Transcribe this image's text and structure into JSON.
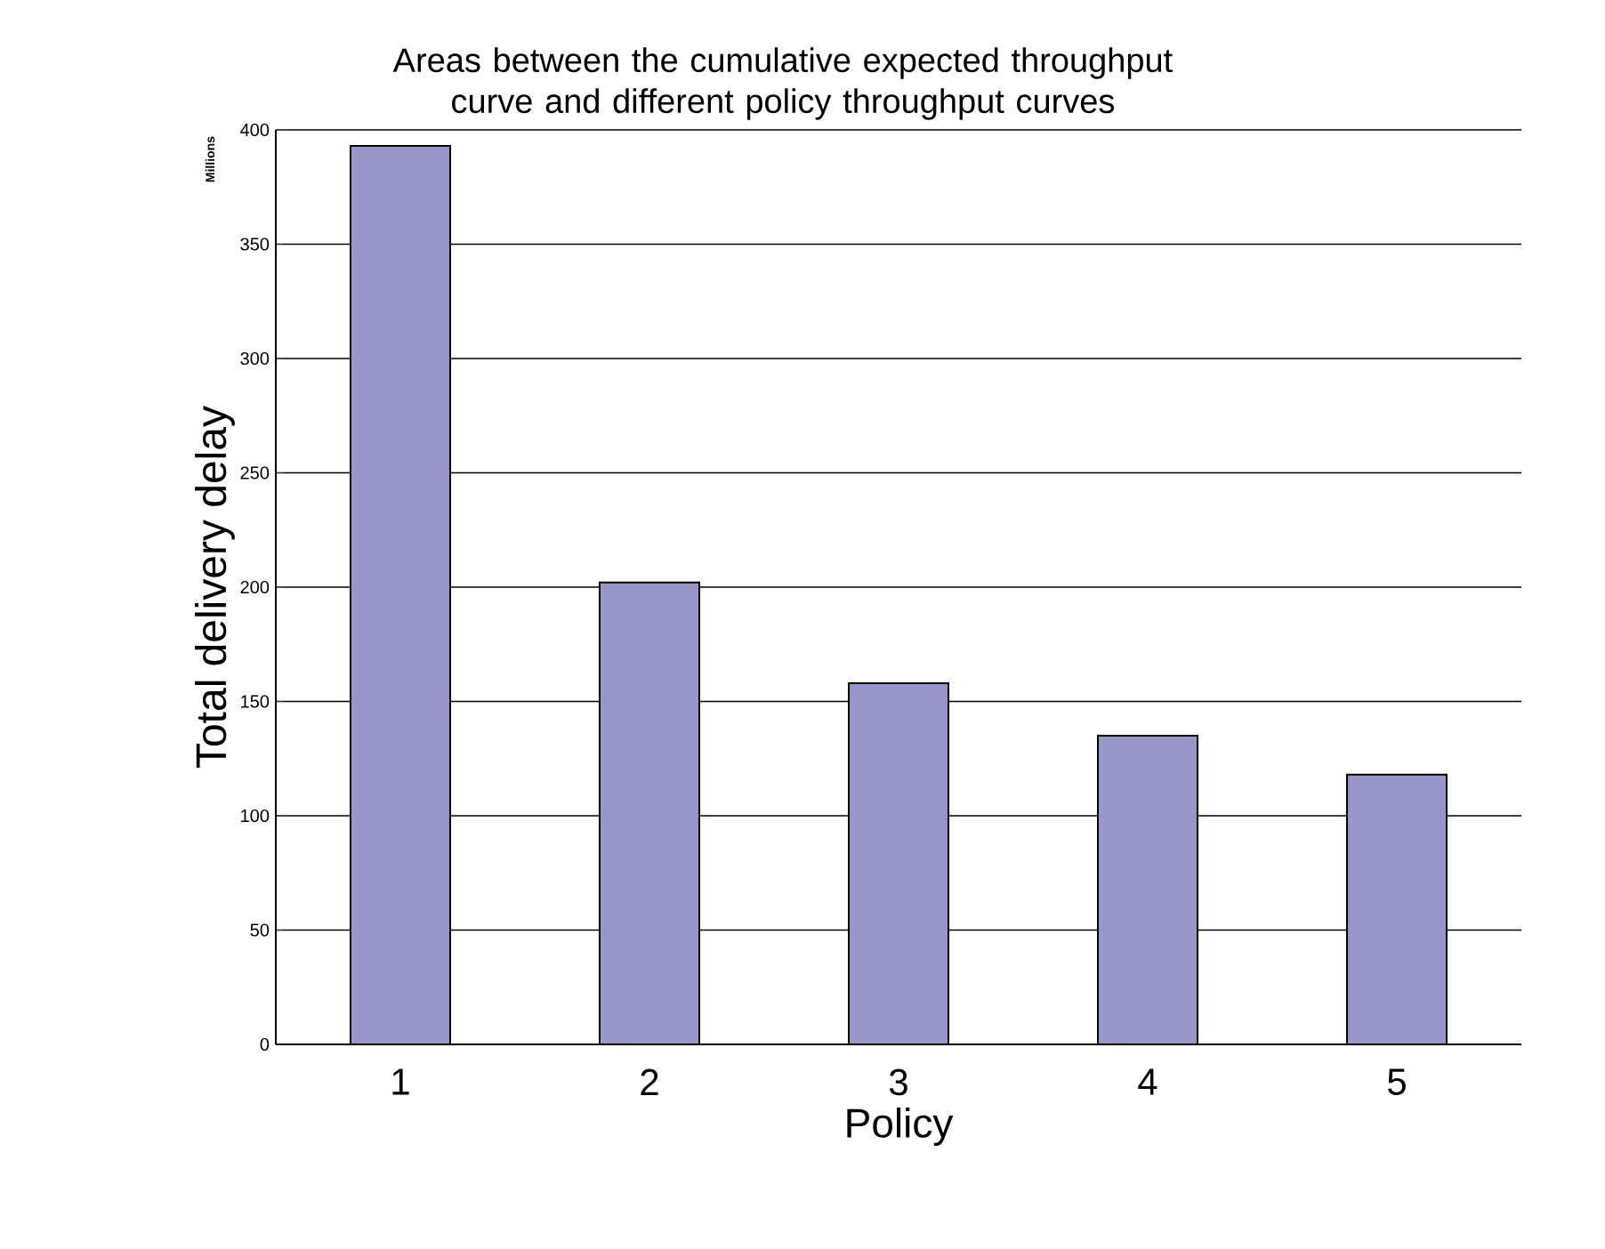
{
  "chart_data": {
    "type": "bar",
    "title": "Areas between the cumulative expected throughput curve and different policy throughput curves",
    "xlabel": "Policy",
    "ylabel": "Total delivery delay",
    "annotations": [
      "Millions"
    ],
    "categories": [
      "1",
      "2",
      "3",
      "4",
      "5"
    ],
    "values": [
      393,
      202,
      158,
      135,
      118
    ],
    "color": "#9696c8",
    "ylim": [
      0,
      400
    ],
    "yticks": [
      0,
      50,
      100,
      150,
      200,
      250,
      300,
      350,
      400
    ],
    "grid": "y"
  }
}
